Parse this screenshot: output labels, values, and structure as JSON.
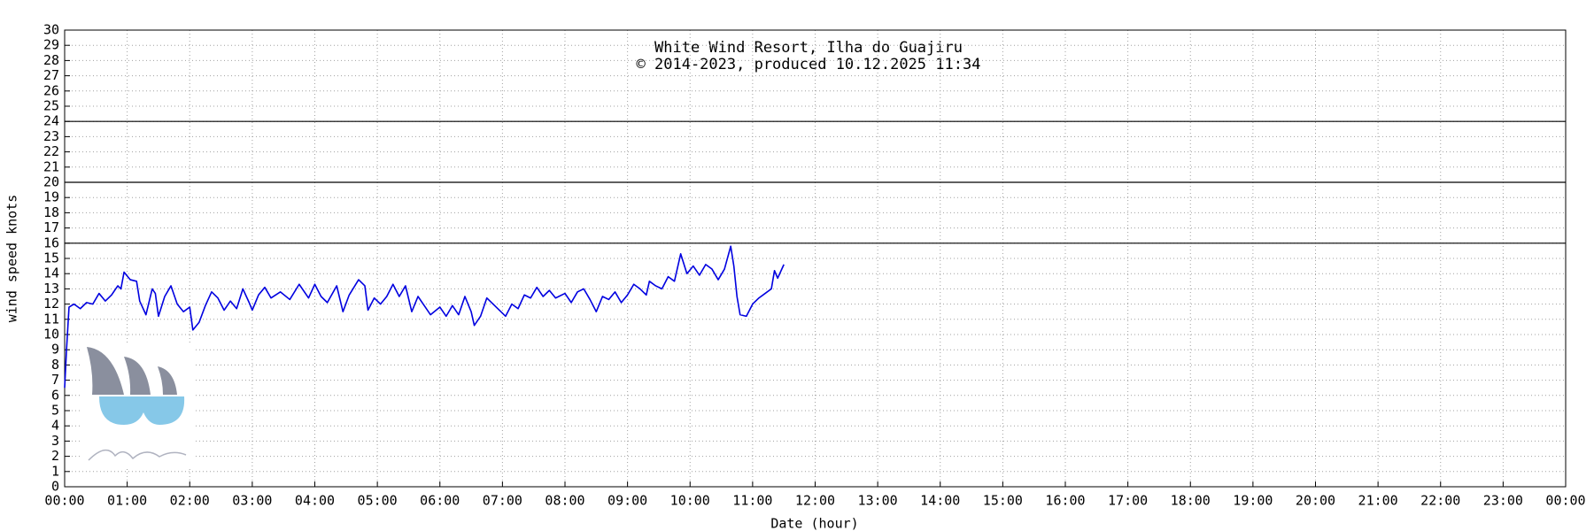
{
  "chart_data": {
    "type": "line",
    "title": "White Wind Resort, Ilha do Guajiru",
    "subtitle": "© 2014-2023, produced 10.12.2025 11:34",
    "x_label": "Date (hour)",
    "y_label": "wind speed knots",
    "xlim": [
      0,
      24
    ],
    "ylim": [
      0,
      30
    ],
    "grid": true,
    "reference_lines": [
      16,
      20,
      24
    ],
    "xticks": [
      {
        "value": 0,
        "label": "00:00"
      },
      {
        "value": 1,
        "label": "01:00"
      },
      {
        "value": 2,
        "label": "02:00"
      },
      {
        "value": 3,
        "label": "03:00"
      },
      {
        "value": 4,
        "label": "04:00"
      },
      {
        "value": 5,
        "label": "05:00"
      },
      {
        "value": 6,
        "label": "06:00"
      },
      {
        "value": 7,
        "label": "07:00"
      },
      {
        "value": 8,
        "label": "08:00"
      },
      {
        "value": 9,
        "label": "09:00"
      },
      {
        "value": 10,
        "label": "10:00"
      },
      {
        "value": 11,
        "label": "11:00"
      },
      {
        "value": 12,
        "label": "12:00"
      },
      {
        "value": 13,
        "label": "13:00"
      },
      {
        "value": 14,
        "label": "14:00"
      },
      {
        "value": 15,
        "label": "15:00"
      },
      {
        "value": 16,
        "label": "16:00"
      },
      {
        "value": 17,
        "label": "17:00"
      },
      {
        "value": 18,
        "label": "18:00"
      },
      {
        "value": 19,
        "label": "19:00"
      },
      {
        "value": 20,
        "label": "20:00"
      },
      {
        "value": 21,
        "label": "21:00"
      },
      {
        "value": 22,
        "label": "22:00"
      },
      {
        "value": 23,
        "label": "23:00"
      },
      {
        "value": 24,
        "label": "00:00"
      }
    ],
    "yticks": [
      0,
      1,
      2,
      3,
      4,
      5,
      6,
      7,
      8,
      9,
      10,
      11,
      12,
      13,
      14,
      15,
      16,
      17,
      18,
      19,
      20,
      21,
      22,
      23,
      24,
      25,
      26,
      27,
      28,
      29,
      30
    ],
    "x": [
      0,
      0.03,
      0.07,
      0.15,
      0.25,
      0.35,
      0.45,
      0.55,
      0.65,
      0.75,
      0.85,
      0.9,
      0.95,
      1.05,
      1.15,
      1.2,
      1.3,
      1.4,
      1.45,
      1.5,
      1.6,
      1.7,
      1.8,
      1.9,
      2,
      2.05,
      2.15,
      2.25,
      2.35,
      2.45,
      2.55,
      2.65,
      2.75,
      2.85,
      2.95,
      3,
      3.1,
      3.2,
      3.3,
      3.45,
      3.6,
      3.75,
      3.9,
      4,
      4.1,
      4.2,
      4.35,
      4.45,
      4.55,
      4.7,
      4.8,
      4.85,
      4.95,
      5.05,
      5.15,
      5.25,
      5.35,
      5.45,
      5.55,
      5.65,
      5.75,
      5.85,
      6,
      6.1,
      6.2,
      6.3,
      6.4,
      6.5,
      6.55,
      6.65,
      6.75,
      6.85,
      6.95,
      7.05,
      7.15,
      7.25,
      7.35,
      7.45,
      7.55,
      7.65,
      7.75,
      7.85,
      8,
      8.1,
      8.2,
      8.3,
      8.4,
      8.5,
      8.6,
      8.7,
      8.8,
      8.9,
      9,
      9.1,
      9.2,
      9.3,
      9.35,
      9.45,
      9.55,
      9.65,
      9.75,
      9.85,
      9.95,
      10.05,
      10.15,
      10.25,
      10.35,
      10.45,
      10.55,
      10.65,
      10.7,
      10.75,
      10.8,
      10.9,
      11,
      11.1,
      11.2,
      11.3,
      11.35,
      11.4,
      11.5
    ],
    "series": [
      {
        "color": "#0000e0",
        "values": [
          6.5,
          9,
          11.8,
          12,
          11.7,
          12.1,
          12,
          12.7,
          12.2,
          12.6,
          13.2,
          13,
          14.1,
          13.6,
          13.5,
          12.2,
          11.3,
          13,
          12.7,
          11.2,
          12.5,
          13.2,
          12,
          11.5,
          11.8,
          10.3,
          10.8,
          11.9,
          12.8,
          12.4,
          11.6,
          12.2,
          11.7,
          13,
          12.1,
          11.6,
          12.6,
          13.1,
          12.4,
          12.8,
          12.3,
          13.3,
          12.4,
          13.3,
          12.5,
          12.1,
          13.2,
          11.5,
          12.6,
          13.6,
          13.2,
          11.6,
          12.4,
          12,
          12.5,
          13.3,
          12.5,
          13.2,
          11.5,
          12.5,
          11.9,
          11.3,
          11.8,
          11.2,
          11.9,
          11.3,
          12.5,
          11.5,
          10.6,
          11.2,
          12.4,
          12,
          11.6,
          11.2,
          12,
          11.7,
          12.6,
          12.4,
          13.1,
          12.5,
          12.9,
          12.4,
          12.7,
          12.1,
          12.8,
          13,
          12.3,
          11.5,
          12.5,
          12.3,
          12.8,
          12.1,
          12.6,
          13.3,
          13,
          12.6,
          13.5,
          13.2,
          13,
          13.8,
          13.5,
          15.3,
          14,
          14.5,
          13.9,
          14.6,
          14.3,
          13.6,
          14.3,
          15.8,
          14.5,
          12.5,
          11.3,
          11.2,
          12,
          12.4,
          12.7,
          13,
          14.2,
          13.7,
          14.6
        ]
      }
    ]
  }
}
